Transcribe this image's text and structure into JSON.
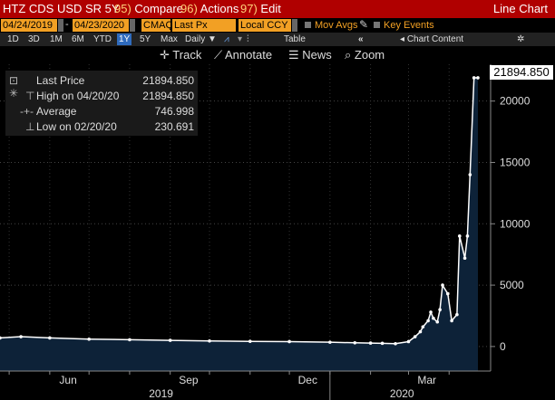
{
  "titlebar": {
    "security": "HTZ CDS USD SR 5Y",
    "compare_num": "95)",
    "compare": "Compare",
    "actions_num": "96)",
    "actions": "Actions",
    "edit_num": "97)",
    "edit": "Edit",
    "view": "Line Chart"
  },
  "params": {
    "start_date": "04/24/2019",
    "end_date": "04/23/2020",
    "source": "CMAQ",
    "field": "Last Px",
    "currency": "Local CCY",
    "mov_avgs": "Mov Avgs",
    "key_events": "Key Events"
  },
  "ranges": {
    "items": [
      "1D",
      "3D",
      "1M",
      "6M",
      "YTD",
      "1Y",
      "5Y",
      "Max"
    ],
    "selected": "1Y",
    "frequency": "Daily",
    "table": "Table",
    "chart_content": "Chart Content"
  },
  "toolbar": {
    "track": "Track",
    "annotate": "Annotate",
    "news": "News",
    "zoom": "Zoom"
  },
  "legend": {
    "last_label": "Last Price",
    "last_value": "21894.850",
    "high_label": "High on 04/20/20",
    "high_value": "21894.850",
    "avg_label": "Average",
    "avg_value": "746.998",
    "low_label": "Low on 02/20/20",
    "low_value": "230.691"
  },
  "last_tag": "21894.850",
  "colors": {
    "title_bg": "#b00000",
    "field_bg": "#f2a024",
    "area_fill": "#0d2238",
    "line": "#ffffff"
  },
  "chart_data": {
    "type": "area",
    "ylim": [
      -2000,
      23000
    ],
    "yticks": [
      0,
      5000,
      10000,
      15000,
      20000
    ],
    "ytick_labels": [
      "0",
      "5000",
      "10000",
      "15000",
      "20000"
    ],
    "x_month_labels": [
      "Jun",
      "Sep",
      "Dec",
      "Mar"
    ],
    "x_year_labels": [
      "2019",
      "2020"
    ],
    "x": [
      "2019-04-24",
      "2019-05-10",
      "2019-06-01",
      "2019-07-01",
      "2019-08-01",
      "2019-09-01",
      "2019-10-01",
      "2019-11-01",
      "2019-12-01",
      "2020-01-01",
      "2020-01-20",
      "2020-02-01",
      "2020-02-10",
      "2020-02-20",
      "2020-03-01",
      "2020-03-06",
      "2020-03-10",
      "2020-03-12",
      "2020-03-16",
      "2020-03-18",
      "2020-03-20",
      "2020-03-23",
      "2020-03-25",
      "2020-03-27",
      "2020-03-31",
      "2020-04-03",
      "2020-04-07",
      "2020-04-09",
      "2020-04-13",
      "2020-04-15",
      "2020-04-17",
      "2020-04-20",
      "2020-04-23"
    ],
    "y": [
      700,
      800,
      700,
      600,
      550,
      500,
      450,
      420,
      400,
      350,
      300,
      280,
      260,
      231,
      400,
      800,
      1200,
      1600,
      2100,
      2800,
      2300,
      2000,
      3000,
      5000,
      4300,
      2100,
      2600,
      9000,
      7200,
      9000,
      14000,
      21894.85,
      21894.85
    ]
  }
}
